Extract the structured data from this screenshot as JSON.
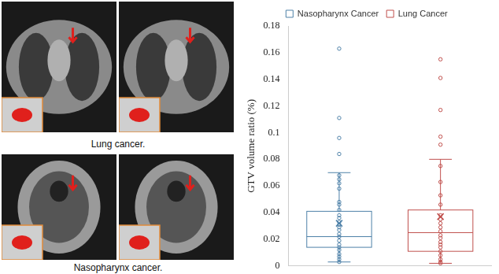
{
  "figure": {
    "panels": [
      {
        "caption": "Lung cancer."
      },
      {
        "caption": "Nasopharynx cancer."
      }
    ]
  },
  "chart_data": {
    "type": "box",
    "ylabel": "GTV volume ratio (%)",
    "ylim": [
      0,
      0.18
    ],
    "yticks": [
      0,
      0.02,
      0.04,
      0.06,
      0.08,
      0.1,
      0.12,
      0.14,
      0.16,
      0.18
    ],
    "grid": false,
    "legend": "top",
    "tick_labels": "y",
    "series": [
      {
        "name": "Nasopharynx Cancer",
        "color": "#4e81a8",
        "min": 0.003,
        "q1": 0.014,
        "median": 0.022,
        "q3": 0.041,
        "max": 0.07,
        "mean": 0.032,
        "values": [
          0.163,
          0.111,
          0.096,
          0.084,
          0.068,
          0.065,
          0.062,
          0.058,
          0.048,
          0.046,
          0.042,
          0.038,
          0.036,
          0.033,
          0.031,
          0.029,
          0.027,
          0.024,
          0.022,
          0.019,
          0.016,
          0.014,
          0.012,
          0.009,
          0.007,
          0.005,
          0.003
        ]
      },
      {
        "name": "Lung Cancer",
        "color": "#c0504d",
        "min": 0.002,
        "q1": 0.011,
        "median": 0.025,
        "q3": 0.042,
        "max": 0.08,
        "mean": 0.037,
        "values": [
          0.155,
          0.141,
          0.117,
          0.097,
          0.091,
          0.075,
          0.063,
          0.053,
          0.046,
          0.038,
          0.035,
          0.032,
          0.029,
          0.026,
          0.023,
          0.021,
          0.018,
          0.016,
          0.014,
          0.011,
          0.008,
          0.005,
          0.003,
          0.002
        ]
      }
    ]
  }
}
